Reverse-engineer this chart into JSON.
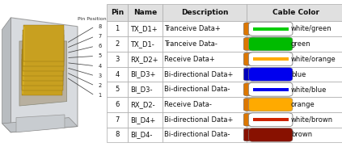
{
  "bg_color": "#ffffff",
  "pin_position_label": "Pin Position",
  "table_headers": [
    "Pin",
    "Name",
    "Description",
    "Cable Color"
  ],
  "rows": [
    {
      "pin": "1",
      "name": "TX_D1+",
      "desc": "Tranceive Data+",
      "color_text": "white/green",
      "wire_color": "#00cc00",
      "wire_stripe": true,
      "tip_color": "#dd7700"
    },
    {
      "pin": "2",
      "name": "TX_D1-",
      "desc": "Tranceive Data-",
      "color_text": "green",
      "wire_color": "#00bb00",
      "wire_stripe": false,
      "tip_color": "#dd7700"
    },
    {
      "pin": "3",
      "name": "RX_D2+",
      "desc": "Receive Data+",
      "color_text": "white/orange",
      "wire_color": "#ffaa00",
      "wire_stripe": true,
      "tip_color": "#dd7700"
    },
    {
      "pin": "4",
      "name": "BI_D3+",
      "desc": "Bi-directional Data+",
      "color_text": "blue",
      "wire_color": "#0000ee",
      "wire_stripe": false,
      "tip_color": "#0000bb"
    },
    {
      "pin": "5",
      "name": "BI_D3-",
      "desc": "Bi-directional Data-",
      "color_text": "white/blue",
      "wire_color": "#0000ee",
      "wire_stripe": true,
      "tip_color": "#dd7700"
    },
    {
      "pin": "6",
      "name": "RX_D2-",
      "desc": "Receive Data-",
      "color_text": "orange",
      "wire_color": "#ffaa00",
      "wire_stripe": false,
      "tip_color": "#dd7700"
    },
    {
      "pin": "7",
      "name": "BI_D4+",
      "desc": "Bi-directional Data+",
      "color_text": "white/brown",
      "wire_color": "#cc2200",
      "wire_stripe": true,
      "tip_color": "#dd7700"
    },
    {
      "pin": "8",
      "name": "BI_D4-",
      "desc": "Bi-directional Data-",
      "color_text": "brown",
      "wire_color": "#881100",
      "wire_stripe": false,
      "tip_color": "#881100"
    }
  ],
  "font_size_header": 6.5,
  "font_size_body": 6.0,
  "border_color": "#aaaaaa",
  "header_bg": "#e0e0e0"
}
